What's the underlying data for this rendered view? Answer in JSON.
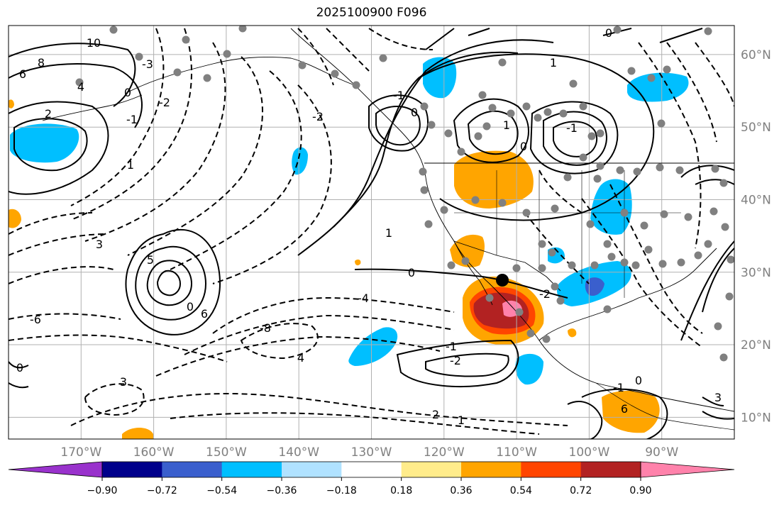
{
  "title": "2025100900 F096",
  "map": {
    "lon_range": [
      -180,
      -80
    ],
    "lat_range": [
      7,
      64
    ],
    "lon_ticks": [
      {
        "value": -170,
        "label": "170°W"
      },
      {
        "value": -160,
        "label": "160°W"
      },
      {
        "value": -150,
        "label": "150°W"
      },
      {
        "value": -140,
        "label": "140°W"
      },
      {
        "value": -130,
        "label": "130°W"
      },
      {
        "value": -120,
        "label": "120°W"
      },
      {
        "value": -110,
        "label": "110°W"
      },
      {
        "value": -100,
        "label": "100°W"
      },
      {
        "value": -90,
        "label": "90°W"
      }
    ],
    "lat_ticks": [
      {
        "value": 60,
        "label": "60°N"
      },
      {
        "value": 50,
        "label": "50°N"
      },
      {
        "value": 40,
        "label": "40°N"
      },
      {
        "value": 30,
        "label": "30°N"
      },
      {
        "value": 20,
        "label": "20°N"
      },
      {
        "value": 10,
        "label": "10°N"
      }
    ],
    "grid": true,
    "contour_labels": [
      "10",
      "8",
      "6",
      "4",
      "2",
      "0",
      "-1",
      "-2",
      "-3",
      "1",
      "3",
      "5",
      "0",
      "6",
      "-6",
      "-8",
      "4",
      "3",
      "2",
      "1",
      "-4",
      "0",
      "-1",
      "-2",
      "0",
      "1",
      "-2",
      "-1",
      "0",
      "1",
      "0",
      "-1",
      "0",
      "1",
      "-1",
      "6",
      "3",
      "-2",
      "0"
    ]
  },
  "colorbar": {
    "tick_labels": [
      "−0.90",
      "−0.72",
      "−0.54",
      "−0.36",
      "−0.18",
      "0.18",
      "0.36",
      "0.54",
      "0.72",
      "0.90"
    ],
    "colors": [
      "#9932cc",
      "#00008b",
      "#3a5fcd",
      "#00bfff",
      "#b0e2ff",
      "#ffffff",
      "#ffec8b",
      "#ffa500",
      "#ff4500",
      "#b22222",
      "#ff82ab"
    ]
  }
}
